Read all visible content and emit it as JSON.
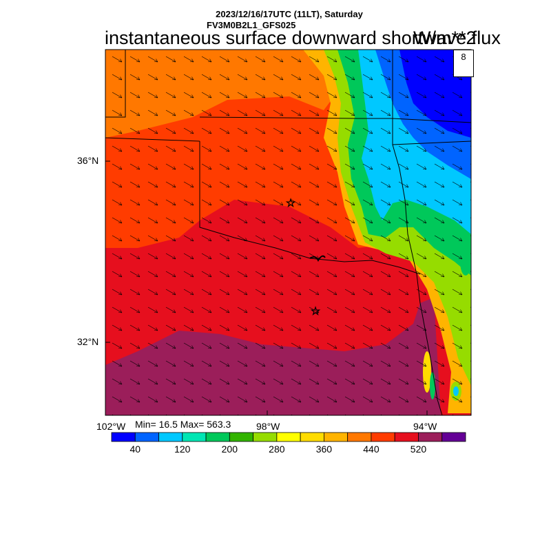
{
  "header": {
    "line1": "2023/12/16/17UTC (11LT), Saturday",
    "line2": "FV3M0B2L1_GFS025",
    "title": "instantaneous surface downward shortwave flux",
    "units": "W/m**2"
  },
  "stats": {
    "text": "Min= 16.5 Max= 563.3",
    "min": 16.5,
    "max": 563.3
  },
  "vector_reference": {
    "label": "8"
  },
  "map": {
    "region": "Oklahoma / North Texas",
    "lat_labels": [
      "36°N",
      "32°N"
    ],
    "lon_labels": [
      "102°W",
      "98°W",
      "94°W"
    ],
    "markers": [
      "star",
      "star"
    ],
    "wind_direction": "northwesterly"
  },
  "colorbar": {
    "colors": [
      "#0000ff",
      "#0064ff",
      "#00c8ff",
      "#00e6b4",
      "#00c85a",
      "#32b400",
      "#96dc00",
      "#ffff00",
      "#ffdc00",
      "#ffb400",
      "#ff7800",
      "#ff3c00",
      "#e60f1e",
      "#9b1e5a",
      "#640096"
    ],
    "tick_labels": [
      "40",
      "120",
      "200",
      "280",
      "360",
      "440",
      "520"
    ]
  },
  "chart_data": {
    "type": "heatmap",
    "title": "instantaneous surface downward shortwave flux",
    "units": "W/m**2",
    "legend_levels": [
      40,
      120,
      200,
      280,
      360,
      440,
      520
    ],
    "range": [
      16.5,
      563.3
    ]
  }
}
